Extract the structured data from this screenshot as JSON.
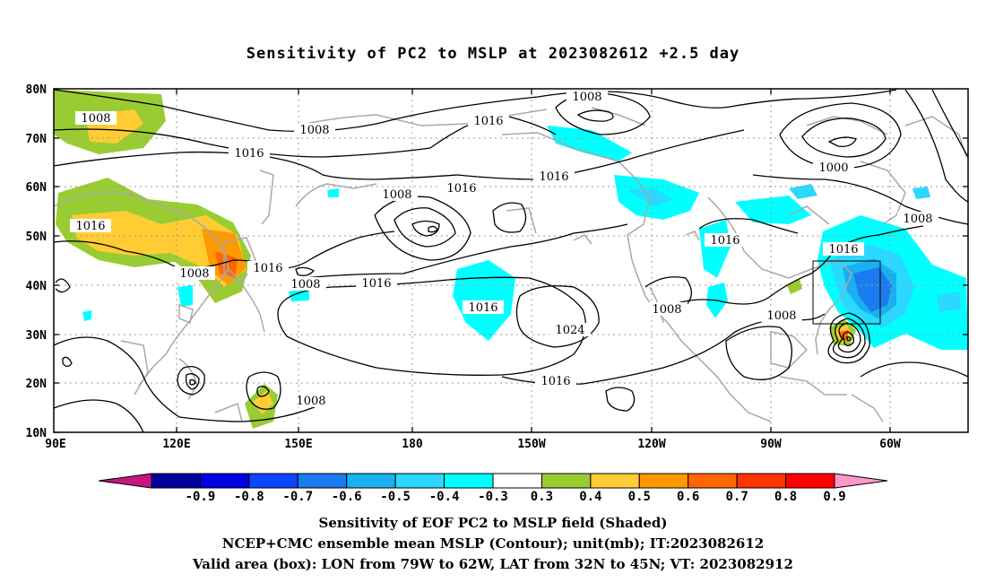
{
  "title": "Sensitivity of PC2 to MSLP at 2023082612 +2.5 day",
  "lat_labels": [
    "80N",
    "70N",
    "60N",
    "50N",
    "40N",
    "30N",
    "20N",
    "10N"
  ],
  "lon_labels": [
    "90E",
    "120E",
    "150E",
    "180",
    "150W",
    "120W",
    "90W",
    "60W"
  ],
  "contour_labels": [
    "1008",
    "1008",
    "1016",
    "1016",
    "1008",
    "1016",
    "1016",
    "1000",
    "1008",
    "1008",
    "1016",
    "1008",
    "1016",
    "1016",
    "1016",
    "1024",
    "1008",
    "1016",
    "1008",
    "1016",
    "1008"
  ],
  "colorbar": {
    "labels": [
      "-0.9",
      "-0.8",
      "-0.7",
      "-0.6",
      "-0.5",
      "-0.4",
      "-0.3",
      "0.3",
      "0.4",
      "0.5",
      "0.6",
      "0.7",
      "0.8",
      "0.9"
    ],
    "colors": [
      "#c71585",
      "#0000a0",
      "#0000e0",
      "#0a46ff",
      "#1a7cf0",
      "#19b0f0",
      "#2bd8ff",
      "#00ffff",
      "#ffffff",
      "#99cc33",
      "#ffcc33",
      "#ff9900",
      "#ff6600",
      "#ff3300",
      "#ff0000",
      "#ff99cc"
    ]
  },
  "captions": [
    "Sensitivity of EOF PC2 to MSLP field (Shaded)",
    "NCEP+CMC ensemble mean MSLP (Contour); unit(mb); IT:2023082612",
    "Valid area (box): LON from 79W to 62W, LAT from 32N to 45N; VT: 2023082912"
  ]
}
